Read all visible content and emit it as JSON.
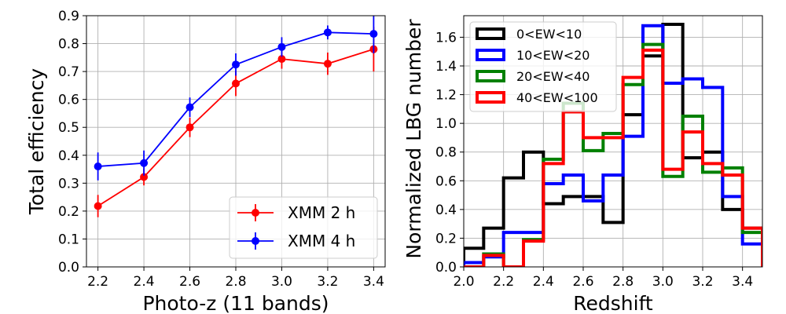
{
  "chart_data": [
    {
      "type": "line",
      "xlabel": "Photo-z (11 bands)",
      "ylabel": "Total efficiency",
      "xlim": [
        2.15,
        3.45
      ],
      "ylim": [
        0.0,
        0.9
      ],
      "xticks": [
        "2.2",
        "2.4",
        "2.6",
        "2.8",
        "3.0",
        "3.2",
        "3.4"
      ],
      "yticks": [
        "0.0",
        "0.1",
        "0.2",
        "0.3",
        "0.4",
        "0.5",
        "0.6",
        "0.7",
        "0.8",
        "0.9"
      ],
      "grid": true,
      "legend": "lower-right",
      "x": [
        2.2,
        2.4,
        2.6,
        2.8,
        3.0,
        3.2,
        3.4
      ],
      "series": [
        {
          "name": "XMM 2 h",
          "color": "#ff0000",
          "values": [
            0.218,
            0.322,
            0.5,
            0.657,
            0.745,
            0.728,
            0.78
          ],
          "errors": [
            0.04,
            0.03,
            0.035,
            0.045,
            0.035,
            0.04,
            0.08
          ]
        },
        {
          "name": "XMM 4 h",
          "color": "#0000ff",
          "values": [
            0.36,
            0.372,
            0.572,
            0.725,
            0.788,
            0.84,
            0.835
          ],
          "errors": [
            0.05,
            0.045,
            0.035,
            0.04,
            0.035,
            0.025,
            0.07
          ]
        }
      ]
    },
    {
      "type": "histogram",
      "xlabel": "Redshift",
      "ylabel": "Normalized LBG number",
      "xlim": [
        2.0,
        3.5
      ],
      "ylim": [
        0.0,
        1.75
      ],
      "xticks": [
        "2.0",
        "2.2",
        "2.4",
        "2.6",
        "2.8",
        "3.0",
        "3.2",
        "3.4"
      ],
      "yticks": [
        "0.0",
        "0.2",
        "0.4",
        "0.6",
        "0.8",
        "1.0",
        "1.2",
        "1.4",
        "1.6"
      ],
      "grid": true,
      "legend": "top-left",
      "bin_edges": [
        2.0,
        2.1,
        2.2,
        2.3,
        2.4,
        2.5,
        2.6,
        2.7,
        2.8,
        2.9,
        3.0,
        3.1,
        3.2,
        3.3,
        3.4,
        3.5
      ],
      "series": [
        {
          "name": "0<EW<10",
          "color": "#000000",
          "values": [
            0.13,
            0.27,
            0.62,
            0.8,
            0.44,
            0.49,
            0.49,
            0.31,
            1.06,
            1.47,
            1.69,
            0.76,
            0.8,
            0.4,
            0.27
          ]
        },
        {
          "name": "10<EW<20",
          "color": "#0000ff",
          "values": [
            0.03,
            0.07,
            0.24,
            0.24,
            0.58,
            0.64,
            0.46,
            0.64,
            0.91,
            1.68,
            1.28,
            1.31,
            1.25,
            0.49,
            0.16
          ]
        },
        {
          "name": "20<EW<40",
          "color": "#008000",
          "values": [
            0.0,
            0.09,
            0.0,
            0.19,
            0.75,
            1.14,
            0.81,
            0.93,
            1.27,
            1.55,
            0.63,
            1.05,
            0.66,
            0.69,
            0.24
          ]
        },
        {
          "name": "40<EW<100",
          "color": "#ff0000",
          "values": [
            0.0,
            0.08,
            0.0,
            0.18,
            0.72,
            1.08,
            0.9,
            0.9,
            1.32,
            1.51,
            0.68,
            0.94,
            0.72,
            0.64,
            0.27
          ]
        }
      ]
    }
  ]
}
